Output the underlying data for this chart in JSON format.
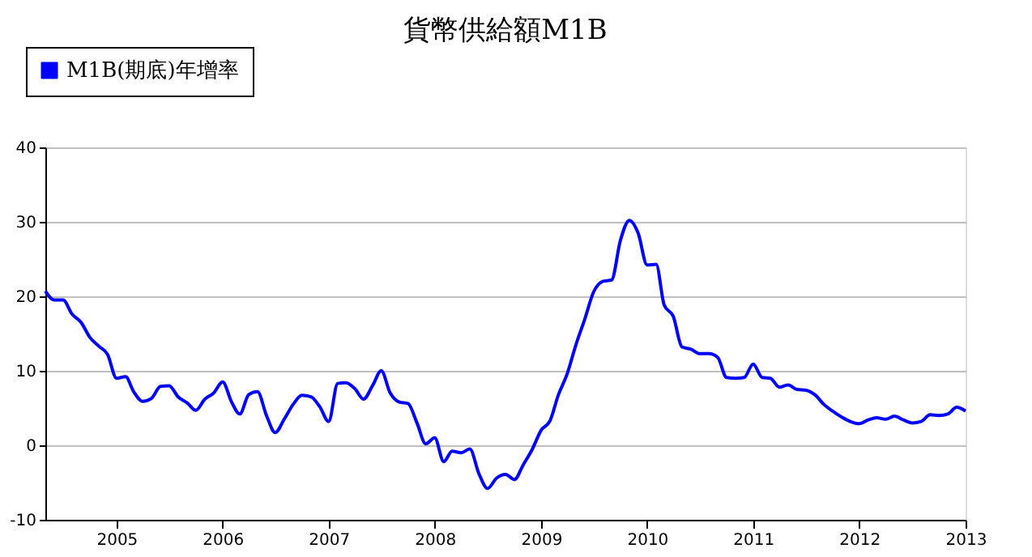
{
  "chart_data": {
    "type": "line",
    "title": "貨幣供給額M1B",
    "x": [
      "2004-05",
      "2004-06",
      "2004-07",
      "2004-08",
      "2004-09",
      "2004-10",
      "2004-11",
      "2004-12",
      "2005-01",
      "2005-02",
      "2005-03",
      "2005-04",
      "2005-05",
      "2005-06",
      "2005-07",
      "2005-08",
      "2005-09",
      "2005-10",
      "2005-11",
      "2005-12",
      "2006-01",
      "2006-02",
      "2006-03",
      "2006-04",
      "2006-05",
      "2006-06",
      "2006-07",
      "2006-08",
      "2006-09",
      "2006-10",
      "2006-11",
      "2006-12",
      "2007-01",
      "2007-02",
      "2007-03",
      "2007-04",
      "2007-05",
      "2007-06",
      "2007-07",
      "2007-08",
      "2007-09",
      "2007-10",
      "2007-11",
      "2007-12",
      "2008-01",
      "2008-02",
      "2008-03",
      "2008-04",
      "2008-05",
      "2008-06",
      "2008-07",
      "2008-08",
      "2008-09",
      "2008-10",
      "2008-11",
      "2008-12",
      "2009-01",
      "2009-02",
      "2009-03",
      "2009-04",
      "2009-05",
      "2009-06",
      "2009-07",
      "2009-08",
      "2009-09",
      "2009-10",
      "2009-11",
      "2009-12",
      "2010-01",
      "2010-02",
      "2010-03",
      "2010-04",
      "2010-05",
      "2010-06",
      "2010-07",
      "2010-08",
      "2010-09",
      "2010-10",
      "2010-11",
      "2010-12",
      "2011-01",
      "2011-02",
      "2011-03",
      "2011-04",
      "2011-05",
      "2011-06",
      "2011-07",
      "2011-08",
      "2011-09",
      "2011-10",
      "2011-11",
      "2011-12",
      "2012-01",
      "2012-02",
      "2012-03",
      "2012-04",
      "2012-05",
      "2012-06",
      "2012-07",
      "2012-08",
      "2012-09",
      "2012-10",
      "2012-11",
      "2012-12",
      "2013-01"
    ],
    "series": [
      {
        "name": "M1B(期底)年增率",
        "color": "#0000ff",
        "values": [
          20.7,
          19.5,
          19.5,
          17.6,
          16.5,
          14.5,
          13.3,
          12.2,
          9.0,
          9.2,
          7.2,
          5.9,
          6.3,
          7.9,
          8.0,
          6.5,
          5.7,
          4.7,
          6.2,
          7.0,
          8.5,
          5.8,
          4.2,
          6.8,
          7.2,
          4.0,
          1.7,
          3.5,
          5.5,
          6.7,
          6.5,
          5.2,
          3.2,
          8.3,
          8.4,
          7.6,
          6.2,
          8.0,
          10.0,
          7.0,
          5.8,
          5.6,
          3.0,
          0.2,
          1.0,
          -2.2,
          -0.8,
          -1.0,
          -0.5,
          -3.8,
          -5.8,
          -4.4,
          -3.9,
          -4.6,
          -2.6,
          -0.6,
          2.0,
          3.3,
          6.7,
          9.6,
          13.5,
          17.0,
          20.6,
          22.0,
          22.2,
          27.5,
          30.2,
          28.5,
          24.2,
          24.3,
          18.8,
          17.3,
          13.2,
          12.9,
          12.3,
          12.3,
          11.8,
          9.1,
          9.0,
          9.1,
          10.9,
          9.1,
          9.0,
          7.8,
          8.1,
          7.5,
          7.4,
          6.8,
          5.5,
          4.6,
          3.8,
          3.2,
          2.9,
          3.4,
          3.7,
          3.5,
          3.9,
          3.4,
          3.0,
          3.2,
          4.1,
          4.0,
          4.2,
          5.1,
          4.6
        ]
      }
    ],
    "xlim": [
      "2004-05",
      "2013-01"
    ],
    "xticks": [
      {
        "value": "2005",
        "label": "2005"
      },
      {
        "value": "2006",
        "label": "2006"
      },
      {
        "value": "2007",
        "label": "2007"
      },
      {
        "value": "2008",
        "label": "2008"
      },
      {
        "value": "2009",
        "label": "2009"
      },
      {
        "value": "2010",
        "label": "2010"
      },
      {
        "value": "2011",
        "label": "2011"
      },
      {
        "value": "2012",
        "label": "2012"
      },
      {
        "value": "2013",
        "label": "2013"
      }
    ],
    "ylim": [
      -10,
      40
    ],
    "yticks": [
      -10,
      0,
      10,
      20,
      30,
      40
    ],
    "grid": "y",
    "legend": "top left",
    "marker": "none",
    "line_style": "solid"
  }
}
